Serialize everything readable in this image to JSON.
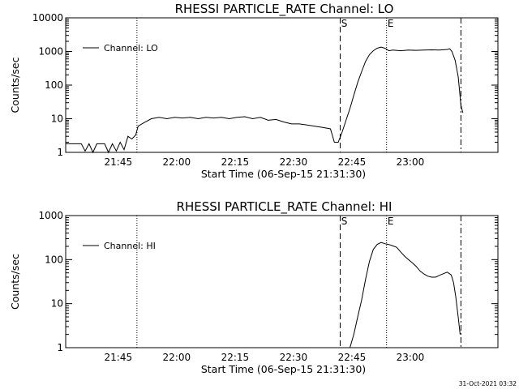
{
  "timestamp": "31-Oct-2021 03:32",
  "chart_data": [
    {
      "type": "line",
      "title": "RHESSI PARTICLE_RATE Channel: LO",
      "xlabel": "Start Time (06-Sep-15 21:31:30)",
      "ylabel": "Counts/sec",
      "y_scale": "log",
      "ylim": [
        1,
        10000
      ],
      "xlim_minutes": [
        0,
        111
      ],
      "x_tick_labels": [
        "21:45",
        "22:00",
        "22:15",
        "22:30",
        "22:45",
        "23:00"
      ],
      "x_tick_minutes": [
        13.5,
        28.5,
        43.5,
        58.5,
        73.5,
        88.5
      ],
      "y_tick_labels": [
        "1",
        "10",
        "100",
        "1000",
        "10000"
      ],
      "y_tick_values": [
        1,
        10,
        100,
        1000,
        10000
      ],
      "legend": "top-left",
      "markers": [
        {
          "minute": 18.3,
          "style": "dotted",
          "label": ""
        },
        {
          "minute": 70.5,
          "style": "dashed",
          "label": "S"
        },
        {
          "minute": 82.4,
          "style": "dotted",
          "label": "E"
        },
        {
          "minute": 101.5,
          "style": "dashdot",
          "label": ""
        }
      ],
      "series": [
        {
          "name": "Channel: LO",
          "points": [
            [
              0,
              1.8
            ],
            [
              2,
              1.8
            ],
            [
              4,
              1.8
            ],
            [
              5,
              1.1
            ],
            [
              6,
              1.8
            ],
            [
              7,
              1
            ],
            [
              8,
              1.8
            ],
            [
              9,
              1.8
            ],
            [
              10,
              1.8
            ],
            [
              11,
              1
            ],
            [
              12,
              1.8
            ],
            [
              13,
              1.1
            ],
            [
              14,
              2
            ],
            [
              15,
              1.2
            ],
            [
              16,
              3
            ],
            [
              17,
              2.5
            ],
            [
              18,
              3.3
            ],
            [
              18.6,
              6
            ],
            [
              20,
              7.5
            ],
            [
              22,
              10
            ],
            [
              24,
              11
            ],
            [
              26,
              10
            ],
            [
              28,
              11
            ],
            [
              30,
              10.5
            ],
            [
              32,
              11
            ],
            [
              34,
              10
            ],
            [
              36,
              11
            ],
            [
              38,
              10.5
            ],
            [
              40,
              11
            ],
            [
              42,
              10
            ],
            [
              44,
              11
            ],
            [
              46,
              11.5
            ],
            [
              48,
              10
            ],
            [
              50,
              11
            ],
            [
              52,
              9
            ],
            [
              54,
              9.5
            ],
            [
              56,
              8
            ],
            [
              58,
              7
            ],
            [
              60,
              7
            ],
            [
              62,
              6.5
            ],
            [
              64,
              6
            ],
            [
              66,
              5.5
            ],
            [
              68,
              5
            ],
            [
              69,
              2
            ],
            [
              70,
              2
            ],
            [
              71,
              4
            ],
            [
              72,
              9
            ],
            [
              73,
              20
            ],
            [
              74,
              50
            ],
            [
              75,
              120
            ],
            [
              76,
              250
            ],
            [
              77,
              500
            ],
            [
              78,
              800
            ],
            [
              79,
              1050
            ],
            [
              80,
              1250
            ],
            [
              81,
              1350
            ],
            [
              82,
              1250
            ],
            [
              83,
              1050
            ],
            [
              84,
              1100
            ],
            [
              86,
              1050
            ],
            [
              88,
              1100
            ],
            [
              90,
              1080
            ],
            [
              92,
              1100
            ],
            [
              94,
              1120
            ],
            [
              96,
              1100
            ],
            [
              98,
              1150
            ],
            [
              98.6,
              1200
            ],
            [
              99.2,
              1000
            ],
            [
              100,
              550
            ],
            [
              100.8,
              180
            ],
            [
              101.5,
              25
            ],
            [
              102,
              15
            ]
          ]
        }
      ]
    },
    {
      "type": "line",
      "title": "RHESSI PARTICLE_RATE Channel: HI",
      "xlabel": "Start Time (06-Sep-15 21:31:30)",
      "ylabel": "Counts/sec",
      "y_scale": "log",
      "ylim": [
        1,
        1000
      ],
      "xlim_minutes": [
        0,
        111
      ],
      "x_tick_labels": [
        "21:45",
        "22:00",
        "22:15",
        "22:30",
        "22:45",
        "23:00"
      ],
      "x_tick_minutes": [
        13.5,
        28.5,
        43.5,
        58.5,
        73.5,
        88.5
      ],
      "y_tick_labels": [
        "1",
        "10",
        "100",
        "1000"
      ],
      "y_tick_values": [
        1,
        10,
        100,
        1000
      ],
      "legend": "top-left",
      "markers": [
        {
          "minute": 18.3,
          "style": "dotted",
          "label": ""
        },
        {
          "minute": 70.5,
          "style": "dashed",
          "label": "S"
        },
        {
          "minute": 82.4,
          "style": "dotted",
          "label": "E"
        },
        {
          "minute": 101.5,
          "style": "dashdot",
          "label": ""
        }
      ],
      "series": [
        {
          "name": "Channel: HI",
          "points": [
            [
              73,
              1
            ],
            [
              74,
              2
            ],
            [
              75,
              5
            ],
            [
              76,
              12
            ],
            [
              77,
              35
            ],
            [
              78,
              90
            ],
            [
              79,
              170
            ],
            [
              80,
              220
            ],
            [
              81,
              245
            ],
            [
              82,
              230
            ],
            [
              83,
              220
            ],
            [
              84,
              205
            ],
            [
              85,
              190
            ],
            [
              86,
              150
            ],
            [
              87,
              120
            ],
            [
              88,
              100
            ],
            [
              89,
              85
            ],
            [
              90,
              70
            ],
            [
              91,
              55
            ],
            [
              92,
              47
            ],
            [
              93,
              42
            ],
            [
              94,
              40
            ],
            [
              95,
              40
            ],
            [
              96,
              44
            ],
            [
              97,
              48
            ],
            [
              98,
              52
            ],
            [
              99,
              45
            ],
            [
              99.6,
              30
            ],
            [
              100.2,
              14
            ],
            [
              100.8,
              5
            ],
            [
              101.3,
              2
            ]
          ]
        }
      ]
    }
  ]
}
